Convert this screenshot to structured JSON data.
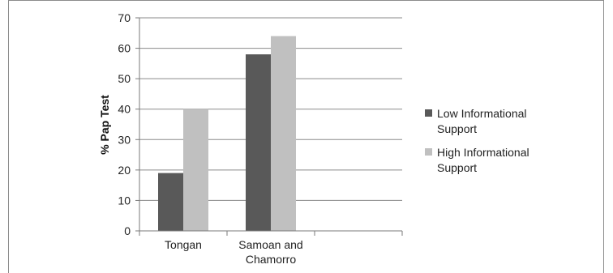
{
  "chart_data": {
    "type": "bar",
    "title": "",
    "xlabel": "",
    "ylabel": "% Pap Test",
    "ylim": [
      0,
      70
    ],
    "yticks": [
      0,
      10,
      20,
      30,
      40,
      50,
      60,
      70
    ],
    "grid": true,
    "legend_position": "right",
    "categories": [
      [
        "Tongan"
      ],
      [
        "Samoan and",
        "Chamorro"
      ],
      [
        ""
      ]
    ],
    "series": [
      {
        "name": [
          "Low Informational",
          "Support"
        ],
        "color": "#595959",
        "values": [
          19,
          58,
          null
        ]
      },
      {
        "name": [
          "High Informational",
          "Support"
        ],
        "color": "#c0c0c0",
        "values": [
          40,
          64,
          null
        ]
      }
    ]
  }
}
